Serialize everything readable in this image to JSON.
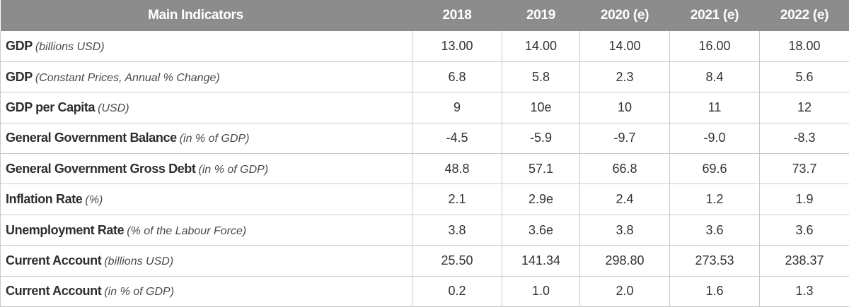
{
  "chart_data": {
    "type": "table",
    "columns": [
      "Main Indicators",
      "2018",
      "2019",
      "2020 (e)",
      "2021 (e)",
      "2022 (e)"
    ],
    "rows": [
      {
        "label": "GDP",
        "unit": "(billions USD)",
        "values": [
          "13.00",
          "14.00",
          "14.00",
          "16.00",
          "18.00"
        ]
      },
      {
        "label": "GDP",
        "unit": "(Constant Prices, Annual % Change)",
        "values": [
          "6.8",
          "5.8",
          "2.3",
          "8.4",
          "5.6"
        ]
      },
      {
        "label": "GDP per Capita",
        "unit": "(USD)",
        "values": [
          "9",
          "10e",
          "10",
          "11",
          "12"
        ]
      },
      {
        "label": "General Government Balance",
        "unit": "(in % of GDP)",
        "values": [
          "-4.5",
          "-5.9",
          "-9.7",
          "-9.0",
          "-8.3"
        ]
      },
      {
        "label": "General Government Gross Debt",
        "unit": "(in % of GDP)",
        "values": [
          "48.8",
          "57.1",
          "66.8",
          "69.6",
          "73.7"
        ]
      },
      {
        "label": "Inflation Rate",
        "unit": "(%)",
        "values": [
          "2.1",
          "2.9e",
          "2.4",
          "1.2",
          "1.9"
        ]
      },
      {
        "label": "Unemployment Rate",
        "unit": "(% of the Labour Force)",
        "values": [
          "3.8",
          "3.6e",
          "3.8",
          "3.6",
          "3.6"
        ]
      },
      {
        "label": "Current Account",
        "unit": "(billions USD)",
        "values": [
          "25.50",
          "141.34",
          "298.80",
          "273.53",
          "238.37"
        ]
      },
      {
        "label": "Current Account",
        "unit": "(in % of GDP)",
        "values": [
          "0.2",
          "1.0",
          "2.0",
          "1.6",
          "1.3"
        ]
      }
    ],
    "colors": {
      "header_background": "#8c8c8c",
      "header_text": "#ffffff",
      "border": "#c9c9c9"
    }
  }
}
